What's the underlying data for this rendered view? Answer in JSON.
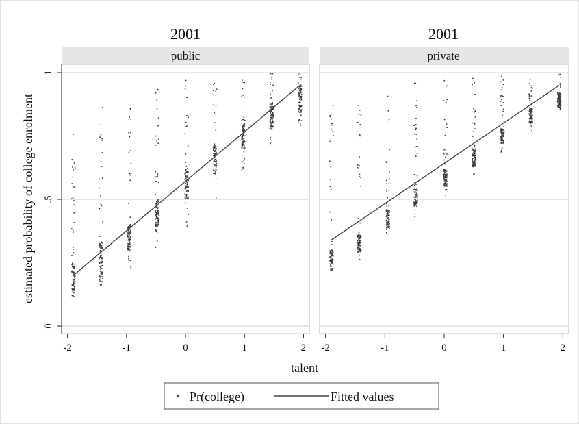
{
  "figure": {
    "ylabel": "estimated probability of college enrolment",
    "xlabel": "talent",
    "yticks": [
      "0",
      ".5",
      "1"
    ],
    "xticks": [
      "-2",
      "-1",
      "0",
      "1",
      "2"
    ],
    "legend": {
      "scatter_label": "Pr(college)",
      "line_label": "Fitted values"
    },
    "colors": {
      "points": "#3a3a3a",
      "line": "#444444",
      "strip": "#e6e6e6",
      "grid": "#cfcfcf",
      "frame": "#bdbdbd"
    }
  },
  "chart_data": [
    {
      "type": "scatter",
      "title": "2001",
      "subtitle": "public",
      "xlim": [
        -2.1,
        2.1
      ],
      "ylim": [
        0,
        1
      ],
      "grid": true,
      "series": [
        {
          "name": "Pr(college)",
          "kind": "points",
          "clusters": [
            {
              "x": -1.9,
              "min": 0.1,
              "max": 0.76,
              "dense": [
                0.13,
                0.25
              ]
            },
            {
              "x": -1.43,
              "min": 0.15,
              "max": 0.89,
              "dense": [
                0.17,
                0.34
              ]
            },
            {
              "x": -0.95,
              "min": 0.22,
              "max": 0.93,
              "dense": [
                0.3,
                0.4
              ]
            },
            {
              "x": -0.48,
              "min": 0.3,
              "max": 0.96,
              "dense": [
                0.37,
                0.5
              ]
            },
            {
              "x": 0.02,
              "min": 0.39,
              "max": 0.98,
              "dense": [
                0.5,
                0.62
              ]
            },
            {
              "x": 0.5,
              "min": 0.5,
              "max": 0.98,
              "dense": [
                0.6,
                0.72
              ]
            },
            {
              "x": 0.98,
              "min": 0.61,
              "max": 0.99,
              "dense": [
                0.7,
                0.8
              ]
            },
            {
              "x": 1.46,
              "min": 0.71,
              "max": 1.0,
              "dense": [
                0.78,
                0.88
              ]
            },
            {
              "x": 1.94,
              "min": 0.79,
              "max": 1.0,
              "dense": [
                0.84,
                0.95
              ]
            }
          ]
        },
        {
          "name": "Fitted values",
          "kind": "line",
          "x": [
            -1.9,
            1.94
          ],
          "y": [
            0.2,
            0.95
          ]
        }
      ]
    },
    {
      "type": "scatter",
      "title": "2001",
      "subtitle": "private",
      "xlim": [
        -2.1,
        2.1
      ],
      "ylim": [
        0,
        1
      ],
      "grid": true,
      "series": [
        {
          "name": "Pr(college)",
          "kind": "points",
          "clusters": [
            {
              "x": -1.9,
              "min": 0.2,
              "max": 0.9,
              "dense": [
                0.22,
                0.3
              ]
            },
            {
              "x": -1.43,
              "min": 0.26,
              "max": 0.89,
              "dense": [
                0.29,
                0.36
              ]
            },
            {
              "x": -0.95,
              "min": 0.34,
              "max": 0.94,
              "dense": [
                0.38,
                0.46
              ]
            },
            {
              "x": -0.48,
              "min": 0.43,
              "max": 0.96,
              "dense": [
                0.47,
                0.54
              ]
            },
            {
              "x": 0.02,
              "min": 0.51,
              "max": 0.97,
              "dense": [
                0.55,
                0.62
              ]
            },
            {
              "x": 0.5,
              "min": 0.59,
              "max": 0.98,
              "dense": [
                0.63,
                0.7
              ]
            },
            {
              "x": 0.98,
              "min": 0.68,
              "max": 0.99,
              "dense": [
                0.72,
                0.78
              ]
            },
            {
              "x": 1.46,
              "min": 0.77,
              "max": 1.0,
              "dense": [
                0.8,
                0.86
              ]
            },
            {
              "x": 1.94,
              "min": 0.85,
              "max": 1.0,
              "dense": [
                0.86,
                0.92
              ]
            }
          ]
        },
        {
          "name": "Fitted values",
          "kind": "line",
          "x": [
            -1.9,
            1.94
          ],
          "y": [
            0.34,
            0.95
          ]
        }
      ]
    }
  ]
}
